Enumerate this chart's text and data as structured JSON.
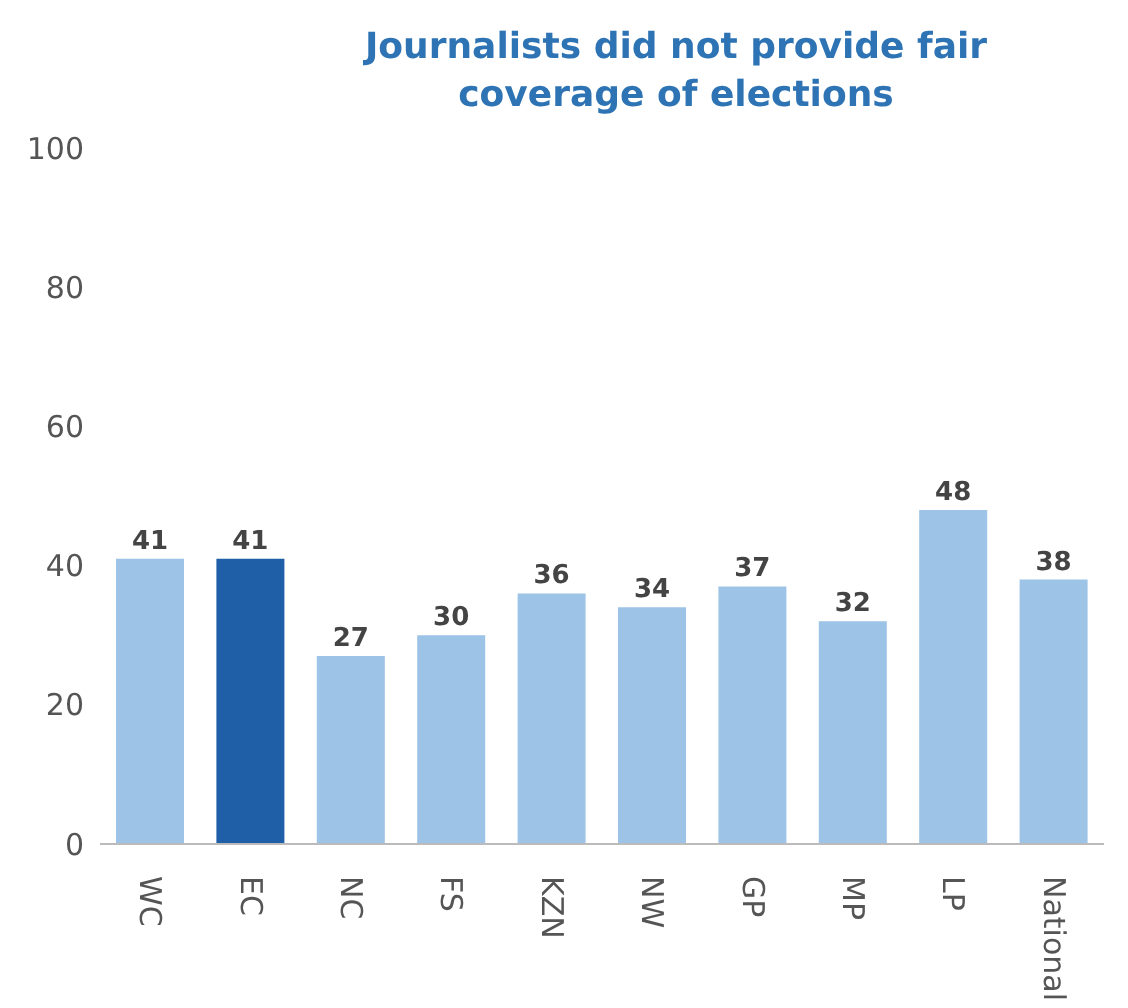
{
  "chart_data": {
    "type": "bar",
    "title": "Journalists did not provide fair coverage of elections",
    "categories": [
      "WC",
      "EC",
      "NC",
      "FS",
      "KZN",
      "NW",
      "GP",
      "MP",
      "LP",
      "National"
    ],
    "values": [
      41,
      41,
      27,
      30,
      36,
      34,
      37,
      32,
      48,
      38
    ],
    "colors": [
      "#9dc3e6",
      "#1f5fa8",
      "#9dc3e6",
      "#9dc3e6",
      "#9dc3e6",
      "#9dc3e6",
      "#9dc3e6",
      "#9dc3e6",
      "#9dc3e6",
      "#9dc3e6"
    ],
    "ylim": [
      0,
      100
    ],
    "yticks": [
      0,
      20,
      40,
      60,
      80,
      100
    ],
    "grid": false,
    "data_labels": true
  }
}
